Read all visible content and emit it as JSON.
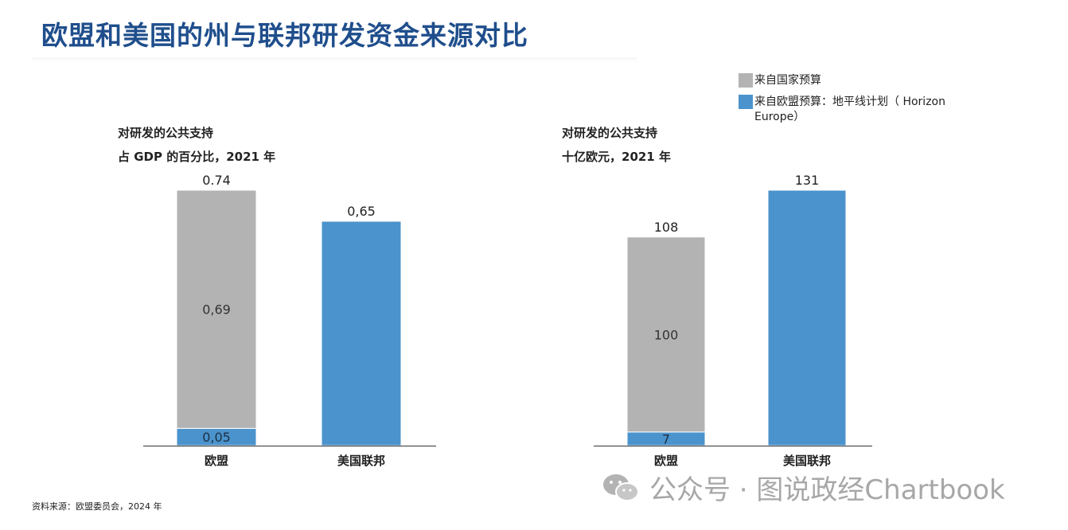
{
  "title": "欧盟和美国的州与联邦研发资金来源对比",
  "legend": [
    {
      "label": "来自国家预算",
      "color": "#b3b3b3"
    },
    {
      "label": "来自欧盟预算：地平线计划（ Horizon Europe）",
      "color": "#4b93cc"
    }
  ],
  "source": "资料来源：欧盟委员会，2024 年",
  "watermark": "公众号 · 图说政经Chartbook",
  "chart_data": [
    {
      "type": "bar",
      "title": "对研发的公共支持",
      "subtitle": "占 GDP 的百分比，2021 年",
      "categories": [
        "欧盟",
        "美国联邦"
      ],
      "ylim": [
        0,
        0.74
      ],
      "series": [
        {
          "name": "来自欧盟预算：地平线计划（ Horizon Europe）",
          "values": [
            0.05,
            0.65
          ],
          "labels": [
            "0,05",
            "0,65"
          ],
          "color": "#4b93cc"
        },
        {
          "name": "来自国家预算",
          "values": [
            0.69,
            0
          ],
          "labels": [
            "0,69",
            ""
          ],
          "color": "#b3b3b3"
        }
      ],
      "totals": [
        "0.74",
        ""
      ]
    },
    {
      "type": "bar",
      "title": "对研发的公共支持",
      "subtitle": "十亿欧元，2021 年",
      "categories": [
        "欧盟",
        "美国联邦"
      ],
      "ylim": [
        0,
        131
      ],
      "series": [
        {
          "name": "来自欧盟预算：地平线计划（ Horizon Europe）",
          "values": [
            7,
            131
          ],
          "labels": [
            "7",
            "131"
          ],
          "color": "#4b93cc"
        },
        {
          "name": "来自国家预算",
          "values": [
            100,
            0
          ],
          "labels": [
            "100",
            ""
          ],
          "color": "#b3b3b3"
        }
      ],
      "totals": [
        "108",
        ""
      ]
    }
  ]
}
